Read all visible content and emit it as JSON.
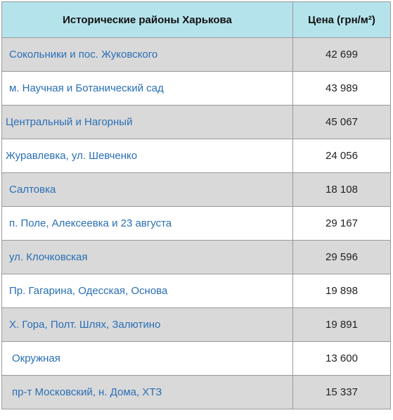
{
  "table": {
    "headers": {
      "district": "Исторические районы Харькова",
      "price": "Цена (грн/м²)"
    },
    "rows": [
      {
        "district": "Сокольники и пос. Жуковского",
        "price": "42 699"
      },
      {
        "district": "м. Научная и Ботанический сад",
        "price": "43 989"
      },
      {
        "district": "Центральный и Нагорный",
        "price": "45 067"
      },
      {
        "district": "Журавлевка, ул. Шевченко",
        "price": "24 056"
      },
      {
        "district": "Салтовка",
        "price": "18 108"
      },
      {
        "district": "п. Поле, Алексеевка и 23 августа",
        "price": "29 167"
      },
      {
        "district": "ул. Клочковская",
        "price": "29 596"
      },
      {
        "district": "Пр. Гагарина, Одесская, Основа",
        "price": "19 898"
      },
      {
        "district": "Х. Гора, Полт. Шлях, Залютино",
        "price": "19 891"
      },
      {
        "district": "Окружная",
        "price": "13 600"
      },
      {
        "district": "пр-т Московский, н. Дома, ХТЗ",
        "price": "15 337"
      }
    ]
  },
  "colors": {
    "header_background": "#b5e3ec",
    "shaded_row": "#d9d9d9",
    "district_text": "#2a6fb6",
    "border": "#999999"
  }
}
